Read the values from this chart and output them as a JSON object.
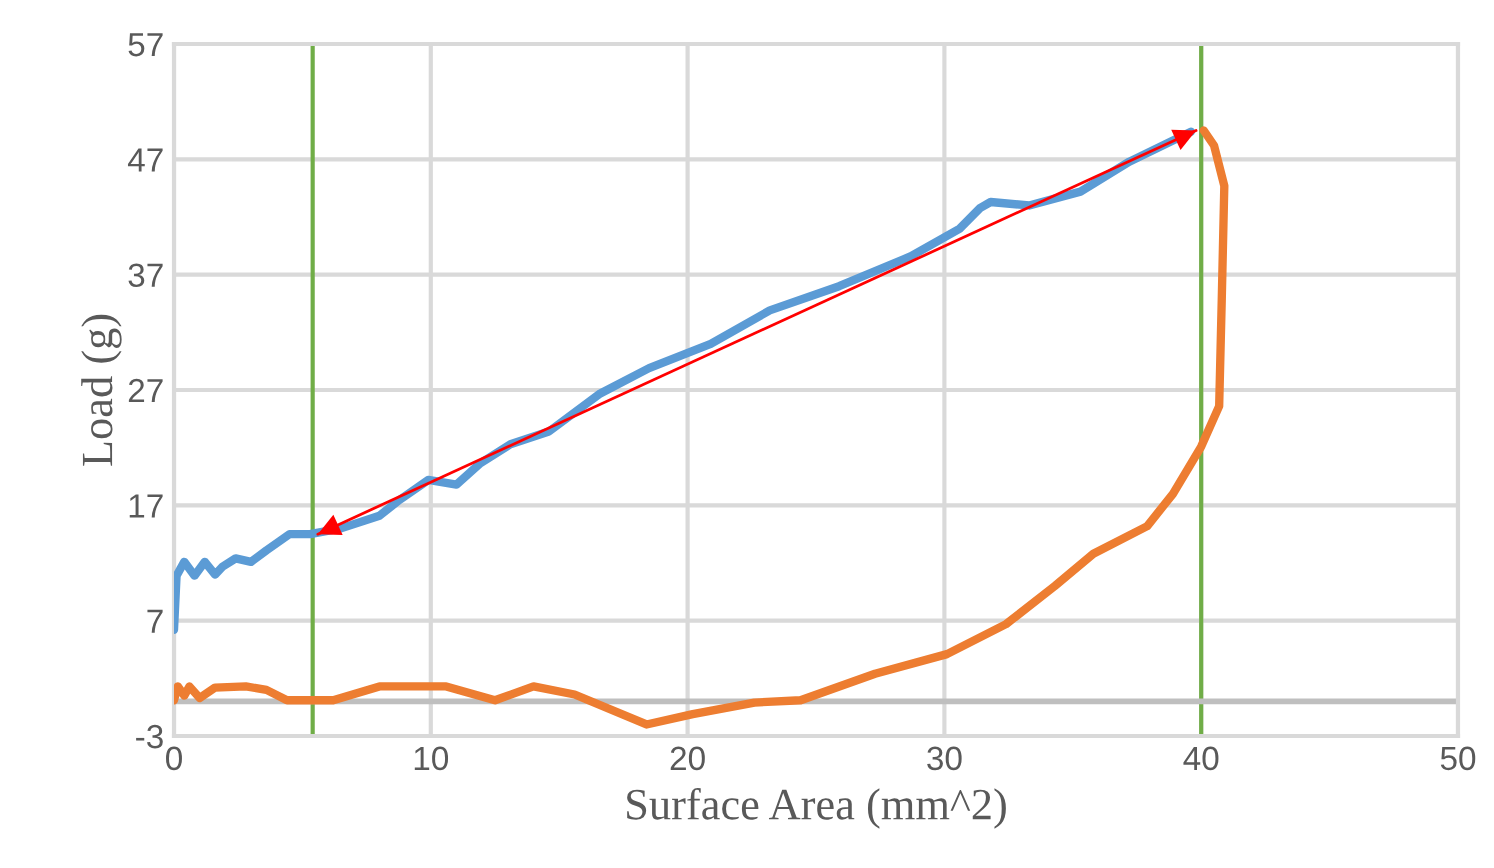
{
  "chart_data": {
    "type": "line",
    "xlabel": "Surface Area (mm^2)",
    "ylabel": "Load (g)",
    "xlim": [
      0,
      50
    ],
    "xticks": [
      0,
      10,
      20,
      30,
      40,
      50
    ],
    "ylim": [
      -3,
      57
    ],
    "yticks": [
      -3,
      7,
      17,
      27,
      37,
      47,
      57
    ],
    "grid": true,
    "marker": "none",
    "line_style": "solid",
    "series": [
      {
        "color": "#5b9bd5",
        "x": [
          0,
          0.1,
          0.4,
          0.8,
          1.2,
          1.6,
          1.9,
          2.4,
          3.0,
          3.6,
          4.5,
          5.3,
          6.5,
          8.0,
          8.8,
          9.9,
          11.0,
          11.9,
          13.1,
          14.6,
          16.6,
          18.5,
          20.9,
          23.2,
          25.9,
          28.7,
          30.6,
          31.4,
          31.8,
          33.3,
          35.3,
          37.2,
          39.6
        ],
        "values": [
          6.2,
          10.9,
          12.1,
          10.9,
          12.1,
          11.0,
          11.7,
          12.4,
          12.1,
          13.1,
          14.5,
          14.5,
          15.0,
          16.1,
          17.5,
          19.2,
          18.8,
          20.6,
          22.3,
          23.4,
          26.7,
          28.9,
          31.0,
          33.9,
          36.0,
          38.6,
          41.0,
          42.8,
          43.3,
          43.0,
          44.2,
          46.8,
          49.4
        ]
      },
      {
        "color": "#ed7d31",
        "x": [
          0,
          0.15,
          0.4,
          0.6,
          1.0,
          1.6,
          2.8,
          3.6,
          4.4,
          6.2,
          8.0,
          10.6,
          12.5,
          14.0,
          15.6,
          18.4,
          20.2,
          22.6,
          24.4,
          27.3,
          30.1,
          32.4,
          34.3,
          35.8,
          37.9,
          38.9,
          40.0,
          40.7,
          40.8,
          40.9,
          40.5,
          40.1
        ],
        "values": [
          0.1,
          1.3,
          0.5,
          1.3,
          0.3,
          1.2,
          1.3,
          1.0,
          0.1,
          0.1,
          1.3,
          1.3,
          0.1,
          1.3,
          0.6,
          -2.0,
          -1.1,
          -0.1,
          0.1,
          2.4,
          4.1,
          6.7,
          10.0,
          12.8,
          15.2,
          18.0,
          22.1,
          25.6,
          34.8,
          44.7,
          48.2,
          49.5
        ]
      },
      {
        "color": "#ff0000",
        "x": [
          5.6,
          39.8
        ],
        "values": [
          14.5,
          49.5
        ]
      }
    ],
    "ref_lines": [
      {
        "axis": "x",
        "value": 5.4,
        "color": "#70ad47"
      },
      {
        "axis": "x",
        "value": 40.0,
        "color": "#70ad47"
      },
      {
        "axis": "y",
        "value": 0,
        "color": "#bfbfbf"
      }
    ]
  }
}
